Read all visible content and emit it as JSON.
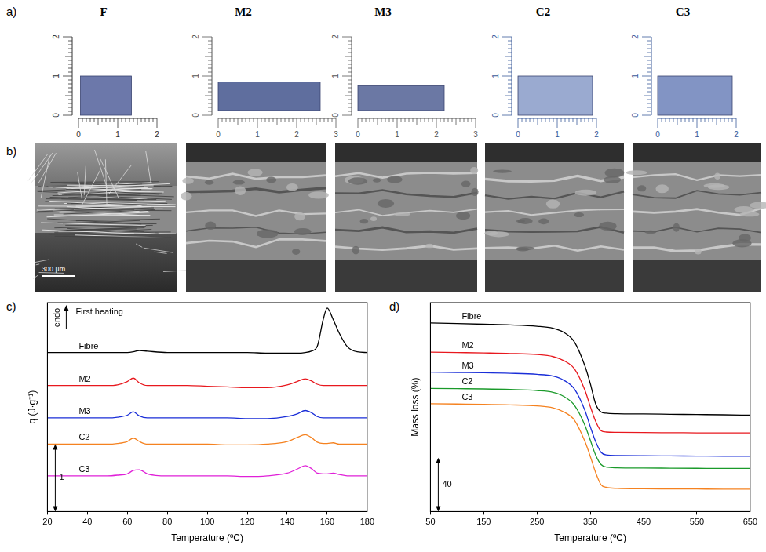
{
  "panel_labels": [
    "a)",
    "b)",
    "c)",
    "d)"
  ],
  "photos": [
    {
      "label": "F",
      "color": "#333333",
      "x_ruler": [
        0,
        1,
        2
      ],
      "y_ruler": [
        0,
        1,
        2
      ]
    },
    {
      "label": "M2",
      "color": "#555555",
      "x_ruler": [
        0,
        1,
        2,
        3
      ],
      "y_ruler": [
        0,
        1,
        2
      ]
    },
    {
      "label": "M3",
      "color": "#555555",
      "x_ruler": [
        0,
        1,
        2,
        3
      ],
      "y_ruler": [
        0,
        1,
        2
      ]
    },
    {
      "label": "C2",
      "color": "#3a5a9a",
      "x_ruler": [
        0,
        1,
        2
      ],
      "y_ruler": [
        0,
        1,
        2
      ]
    },
    {
      "label": "C3",
      "color": "#3a5a9a",
      "x_ruler": [
        0,
        1,
        2
      ],
      "y_ruler": [
        0,
        1,
        2
      ]
    }
  ],
  "sem": {
    "scale_bar": "300 µm"
  },
  "chart_data": [
    {
      "type": "line",
      "x_label": "Temperature (ºC)",
      "y_label": "q (J·g⁻¹)",
      "annotations": [
        {
          "text": "First heating",
          "kind": "note"
        },
        {
          "text": "endo",
          "kind": "arrow"
        }
      ],
      "scale_bar": {
        "label": "1",
        "length": 1
      },
      "x": [
        20,
        30,
        40,
        50,
        55,
        60,
        63,
        66,
        70,
        80,
        90,
        100,
        110,
        120,
        130,
        140,
        145,
        149,
        152,
        155,
        158,
        160,
        163,
        166,
        170,
        175,
        180
      ],
      "series": [
        {
          "name": "Fibre",
          "color": "#000000",
          "values": [
            2.36,
            2.36,
            2.36,
            2.36,
            2.36,
            2.36,
            2.37,
            2.39,
            2.38,
            2.36,
            2.36,
            2.36,
            2.36,
            2.36,
            2.35,
            2.35,
            2.35,
            2.36,
            2.38,
            2.45,
            2.85,
            3.02,
            2.85,
            2.65,
            2.45,
            2.37,
            2.36
          ]
        },
        {
          "name": "M2",
          "color": "#e8181e",
          "values": [
            1.87,
            1.87,
            1.87,
            1.87,
            1.88,
            1.93,
            1.98,
            1.91,
            1.87,
            1.87,
            1.87,
            1.86,
            1.85,
            1.84,
            1.84,
            1.88,
            1.93,
            1.97,
            1.94,
            1.89,
            1.87,
            1.87,
            1.87,
            1.87,
            1.87,
            1.87,
            1.87
          ]
        },
        {
          "name": "M3",
          "color": "#1a2ed8",
          "values": [
            1.39,
            1.39,
            1.39,
            1.39,
            1.4,
            1.43,
            1.48,
            1.42,
            1.39,
            1.39,
            1.39,
            1.39,
            1.39,
            1.38,
            1.38,
            1.41,
            1.45,
            1.5,
            1.47,
            1.41,
            1.39,
            1.39,
            1.39,
            1.39,
            1.39,
            1.39,
            1.39
          ]
        },
        {
          "name": "C2",
          "color": "#f58220",
          "values": [
            1.0,
            1.0,
            1.0,
            1.0,
            1.01,
            1.04,
            1.09,
            1.04,
            1.0,
            1.0,
            1.0,
            1.0,
            0.99,
            0.99,
            1.0,
            1.04,
            1.1,
            1.14,
            1.1,
            1.03,
            1.01,
            1.01,
            1.02,
            1.0,
            1.0,
            1.0,
            1.0
          ]
        },
        {
          "name": "C3",
          "color": "#e020d8",
          "values": [
            0.53,
            0.53,
            0.53,
            0.53,
            0.54,
            0.56,
            0.61,
            0.62,
            0.56,
            0.53,
            0.53,
            0.53,
            0.53,
            0.52,
            0.53,
            0.57,
            0.63,
            0.68,
            0.64,
            0.57,
            0.56,
            0.56,
            0.57,
            0.55,
            0.53,
            0.53,
            0.53
          ]
        }
      ],
      "xlim": [
        20,
        180
      ],
      "xticks": [
        20,
        40,
        60,
        80,
        100,
        120,
        140,
        160,
        180
      ],
      "ylim": [
        0,
        3.1
      ],
      "tick_labels": "x",
      "grid": false
    },
    {
      "type": "line",
      "x_label": "Temperature (ºC)",
      "y_label": "Mass loss (%)",
      "scale_bar": {
        "label": "40",
        "length": 40
      },
      "x": [
        50,
        100,
        150,
        200,
        250,
        280,
        300,
        320,
        340,
        350,
        360,
        370,
        380,
        400,
        450,
        500,
        550,
        600,
        650
      ],
      "series": [
        {
          "name": "Fibre",
          "color": "#000000",
          "values": [
            140,
            139.5,
            139,
            138.5,
            137.5,
            136,
            133,
            126,
            108,
            95,
            80,
            74,
            73,
            72.6,
            72.4,
            72.2,
            72,
            71.8,
            71.5
          ]
        },
        {
          "name": "M2",
          "color": "#e8181e",
          "values": [
            118.3,
            118,
            117.7,
            117.3,
            116.5,
            115,
            112,
            106,
            90,
            78,
            67,
            60,
            59,
            58.8,
            58.6,
            58.5,
            58.4,
            58.3,
            58.3
          ]
        },
        {
          "name": "M3",
          "color": "#1a2ed8",
          "values": [
            103.4,
            103.2,
            103,
            102.6,
            101.8,
            100.5,
            97.5,
            91,
            75,
            63,
            52,
            44,
            42,
            41.6,
            41.4,
            41.3,
            41.2,
            41.1,
            41.1
          ]
        },
        {
          "name": "C2",
          "color": "#1a9a2a",
          "values": [
            91.4,
            91.2,
            91,
            90.6,
            89.8,
            88.5,
            85.5,
            79,
            64,
            53,
            42,
            35,
            33,
            32.5,
            32.3,
            32.2,
            32.1,
            32,
            32
          ]
        },
        {
          "name": "C3",
          "color": "#f58220",
          "values": [
            80,
            79.8,
            79.6,
            79.2,
            78.4,
            77,
            74,
            68,
            52,
            41,
            29,
            20,
            18,
            17.2,
            16.9,
            16.8,
            16.7,
            16.6,
            16.6
          ]
        }
      ],
      "xlim": [
        50,
        650
      ],
      "xticks": [
        50,
        150,
        250,
        350,
        450,
        550,
        650
      ],
      "ylim": [
        0,
        155
      ],
      "tick_labels": "x",
      "grid": false
    }
  ]
}
